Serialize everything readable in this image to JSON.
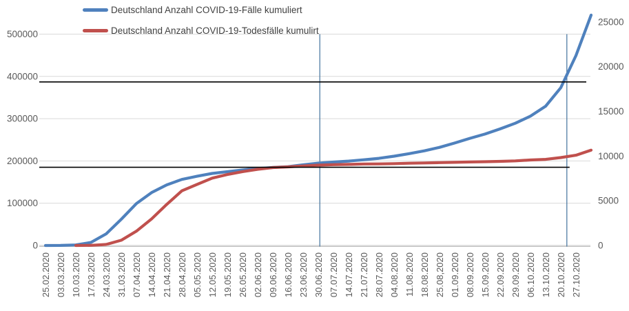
{
  "legend": {
    "items": [
      {
        "label": "Deutschland Anzahl COVID-19-Fälle kumuliert",
        "color": "#4F81BD"
      },
      {
        "label": "Deutschland Anzahl COVID-19-Todesfälle kumulirt",
        "color": "#C0504D"
      }
    ],
    "position": "top-left"
  },
  "chart_data": {
    "type": "line",
    "title": "",
    "grid": true,
    "x_tick_labels": [
      "25.02.2020",
      "03.03.2020",
      "10.03.2020",
      "17.03.2020",
      "24.03.2020",
      "31.03.2020",
      "07.04.2020",
      "14.04.2020",
      "21.04.2020",
      "28.04.2020",
      "05.05.2020",
      "12.05.2020",
      "19.05.2020",
      "26.05.2020",
      "02.06.2020",
      "09.06.2020",
      "16.06.2020",
      "23.06.2020",
      "30.06.2020",
      "07.07.2020",
      "14.07.2020",
      "21.07.2020",
      "28.07.2020",
      "04.08.2020",
      "11.08.2020",
      "18.08.2020",
      "25.08,2020",
      "01.09.2020",
      "08.09.2020",
      "15.09.2020",
      "22.09.2020",
      "29.09.2020",
      "06.10.2020",
      "13.10.2020",
      "20.10.2020",
      "27.10.2020"
    ],
    "x_note": "weekly ticks; both curves extend one more unlabeled week (03.11.2020) to the plot edge",
    "left_axis": {
      "tick_labels": [
        "0",
        "100000",
        "200000",
        "300000",
        "400000",
        "500000"
      ],
      "tick_values": [
        0,
        100000,
        200000,
        300000,
        400000,
        500000
      ],
      "max": 550000
    },
    "right_axis": {
      "tick_labels": [
        "0",
        "5000",
        "10000",
        "15000",
        "20000",
        "25000"
      ],
      "tick_values": [
        0,
        5000,
        10000,
        15000,
        20000,
        25000
      ],
      "max": 26000
    },
    "series": [
      {
        "name": "Deutschland Anzahl COVID-19-Fälle kumuliert",
        "axis": "left",
        "color": "#4F81BD",
        "values": [
          17,
          196,
          1307,
          7156,
          27436,
          61913,
          99225,
          125098,
          143457,
          156337,
          163860,
          170508,
          174697,
          178570,
          182028,
          184543,
          186461,
          190862,
          194725,
          197341,
          199726,
          202799,
          206242,
          211281,
          217293,
          224014,
          232082,
          242381,
          253474,
          263663,
          275927,
          289219,
          306086,
          329453,
          373167,
          449275,
          545027
        ]
      },
      {
        "name": "Deutschland Anzahl COVID-19-Todesfälle kumulirt",
        "axis": "right",
        "color": "#C0504D",
        "values": [
          null,
          null,
          2,
          12,
          114,
          583,
          1607,
          2969,
          4598,
          6115,
          6831,
          7533,
          7935,
          8257,
          8522,
          8711,
          8791,
          8895,
          8985,
          9036,
          9071,
          9118,
          9122,
          9156,
          9201,
          9232,
          9267,
          9298,
          9338,
          9368,
          9409,
          9464,
          9562,
          9634,
          9836,
          10098,
          10669
        ]
      }
    ],
    "annotations": {
      "hlines": [
        {
          "axis": "left",
          "value": 387000,
          "color": "#000000",
          "extent": "full-plot-width"
        },
        {
          "axis": "left",
          "value": 185000,
          "color": "#000000",
          "extent": "left-edge-to-second-vline"
        }
      ],
      "vlines": [
        {
          "date": "30.06.2020",
          "x_index": 18.1,
          "top_value_left_axis": 500000,
          "color": "#41719C"
        },
        {
          "date": "23.10.2020",
          "x_index": 34.4,
          "top_value_left_axis": 500000,
          "color": "#41719C"
        }
      ]
    },
    "colors": {
      "gridline": "#D9D9D9",
      "axis_line": "#BFBFBF",
      "axis_text": "#595959"
    }
  }
}
